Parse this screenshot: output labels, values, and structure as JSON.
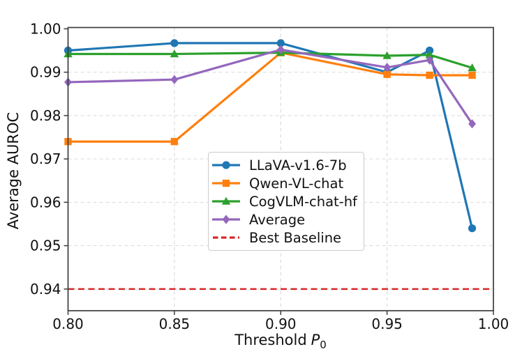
{
  "chart_data": {
    "type": "line",
    "title": "",
    "ylabel": "Average AUROC",
    "xlabel": {
      "text": "Threshold",
      "variable": "P",
      "subscript": "0"
    },
    "xlim": [
      0.8,
      1.0
    ],
    "ylim": [
      0.935,
      1.0003
    ],
    "xticks": {
      "values": [
        0.8,
        0.85,
        0.9,
        0.95,
        1.0
      ],
      "labels": [
        "0.80",
        "0.85",
        "0.90",
        "0.95",
        "1.00"
      ]
    },
    "yticks": {
      "values": [
        0.94,
        0.95,
        0.96,
        0.97,
        0.98,
        0.99,
        1.0
      ],
      "labels": [
        "0.94",
        "0.95",
        "0.96",
        "0.97",
        "0.98",
        "0.99",
        "1.00"
      ]
    },
    "grid": true,
    "legend_position": "center",
    "x": [
      0.8,
      0.85,
      0.9,
      0.95,
      0.97,
      0.99
    ],
    "series": [
      {
        "name": "LLaVA-v1.6-7b",
        "color": "#1f77b4",
        "marker": "circle",
        "values": [
          0.995,
          0.9967,
          0.9967,
          0.99,
          0.995,
          0.954
        ]
      },
      {
        "name": "Qwen-VL-chat",
        "color": "#ff7f0e",
        "marker": "square",
        "values": [
          0.974,
          0.974,
          0.9945,
          0.9895,
          0.9893,
          0.9893
        ]
      },
      {
        "name": "CogVLM-chat-hf",
        "color": "#2ca02c",
        "marker": "triangle",
        "values": [
          0.9942,
          0.9942,
          0.9945,
          0.9938,
          0.994,
          0.991
        ]
      },
      {
        "name": "Average",
        "color": "#9467bd",
        "marker": "diamond",
        "values": [
          0.9877,
          0.9883,
          0.9952,
          0.9911,
          0.9928,
          0.9781
        ]
      }
    ],
    "baseline": {
      "name": "Best Baseline",
      "color": "#d62728",
      "value": 0.94,
      "linestyle": "dashed"
    }
  }
}
